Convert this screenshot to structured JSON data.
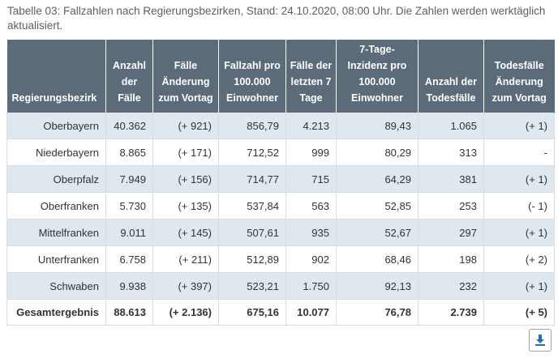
{
  "caption": "Tabelle 03: Fallzahlen nach Regierungsbezirken, Stand: 24.10.2020, 08:00 Uhr. Die Zahlen werden werktäglich aktualisiert.",
  "table": {
    "headers": [
      "Regierungsbezirk",
      "Anzahl der Fälle",
      "Fälle Änderung zum Vortag",
      "Fallzahl pro 100.000 Einwohner",
      "Fälle der letzten 7 Tage",
      "7-Tage-Inzidenz pro 100.000 Einwohner",
      "Anzahl der Todesfälle",
      "Todesfälle Änderung zum Vortag"
    ],
    "rows": [
      [
        "Oberbayern",
        "40.362",
        "(+ 921)",
        "856,79",
        "4.213",
        "89,43",
        "1.065",
        "(+ 1)"
      ],
      [
        "Niederbayern",
        "8.865",
        "(+ 171)",
        "712,52",
        "999",
        "80,29",
        "313",
        "-"
      ],
      [
        "Oberpfalz",
        "7.949",
        "(+ 156)",
        "714,77",
        "715",
        "64,29",
        "381",
        "(+ 1)"
      ],
      [
        "Oberfranken",
        "5.730",
        "(+ 135)",
        "537,84",
        "563",
        "52,85",
        "253",
        "(- 1)"
      ],
      [
        "Mittelfranken",
        "9.011",
        "(+ 145)",
        "507,61",
        "935",
        "52,67",
        "297",
        "(+ 1)"
      ],
      [
        "Unterfranken",
        "6.758",
        "(+ 211)",
        "512,89",
        "902",
        "68,46",
        "198",
        "(+ 2)"
      ],
      [
        "Schwaben",
        "9.938",
        "(+ 397)",
        "523,21",
        "1.750",
        "92,13",
        "232",
        "(+ 1)"
      ]
    ],
    "total": [
      "Gesamtergebnis",
      "88.613",
      "(+ 2.136)",
      "675,16",
      "10.077",
      "76,78",
      "2.739",
      "(+ 5)"
    ]
  },
  "download": {
    "icon": "download-icon",
    "color": "#2a6ebb"
  },
  "colors": {
    "header_bg": "#5b6b79",
    "stripe_bg": "#dfe7ef",
    "border": "#d6dde3"
  }
}
